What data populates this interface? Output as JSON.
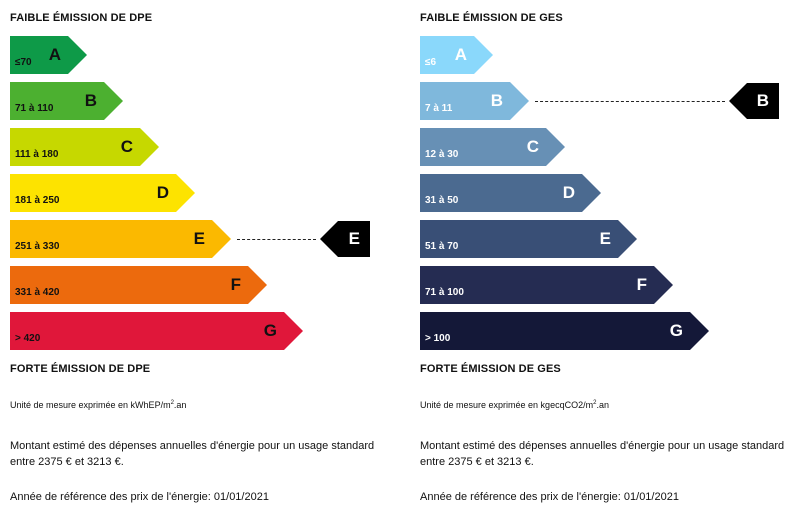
{
  "dpe": {
    "header_top": "FAIBLE ÉMISSION DE DPE",
    "header_bottom": "FORTE ÉMISSION DE DPE",
    "current_class": "E",
    "unit_prefix": "Unité de mesure exprimée en kWhEP/m",
    "unit_sup": "2",
    "unit_suffix": ".an",
    "info": "Montant estimé des dépenses annuelles d'énergie pour un usage standard entre 2375 € et 3213 €.",
    "reference": "Année de référence des prix de l'énergie: 01/01/2021",
    "bars": [
      {
        "range": "≤70",
        "letter": "A",
        "color": "#0e9a48",
        "text_color": "#111111"
      },
      {
        "range": "71 à 110",
        "letter": "B",
        "color": "#4cb030",
        "text_color": "#111111"
      },
      {
        "range": "111 à 180",
        "letter": "C",
        "color": "#c6d800",
        "text_color": "#111111"
      },
      {
        "range": "181 à 250",
        "letter": "D",
        "color": "#fde300",
        "text_color": "#111111"
      },
      {
        "range": "251 à 330",
        "letter": "E",
        "color": "#fbb900",
        "text_color": "#111111"
      },
      {
        "range": "331 à 420",
        "letter": "F",
        "color": "#ec6a0d",
        "text_color": "#111111"
      },
      {
        "range": "> 420",
        "letter": "G",
        "color": "#e0173a",
        "text_color": "#111111"
      }
    ]
  },
  "ges": {
    "header_top": "FAIBLE ÉMISSION DE GES",
    "header_bottom": "FORTE ÉMISSION DE GES",
    "current_class": "B",
    "unit_prefix": "Unité de mesure exprimée en kgecqCO2/m",
    "unit_sup": "2",
    "unit_suffix": ".an",
    "info": "Montant estimé des dépenses annuelles d'énergie pour un usage standard entre 2375 € et 3213 €.",
    "reference": "Année de référence des prix de l'énergie: 01/01/2021",
    "bars": [
      {
        "range": "≤6",
        "letter": "A",
        "color": "#8ad8fb",
        "text_color": "#ffffff"
      },
      {
        "range": "7 à 11",
        "letter": "B",
        "color": "#7fb8dc",
        "text_color": "#ffffff"
      },
      {
        "range": "12 à 30",
        "letter": "C",
        "color": "#6790b5",
        "text_color": "#ffffff"
      },
      {
        "range": "31 à 50",
        "letter": "D",
        "color": "#4b6a90",
        "text_color": "#ffffff"
      },
      {
        "range": "51 à 70",
        "letter": "E",
        "color": "#394f76",
        "text_color": "#ffffff"
      },
      {
        "range": "71 à 100",
        "letter": "F",
        "color": "#252c52",
        "text_color": "#ffffff"
      },
      {
        "range": "> 100",
        "letter": "G",
        "color": "#141838",
        "text_color": "#ffffff"
      }
    ]
  }
}
